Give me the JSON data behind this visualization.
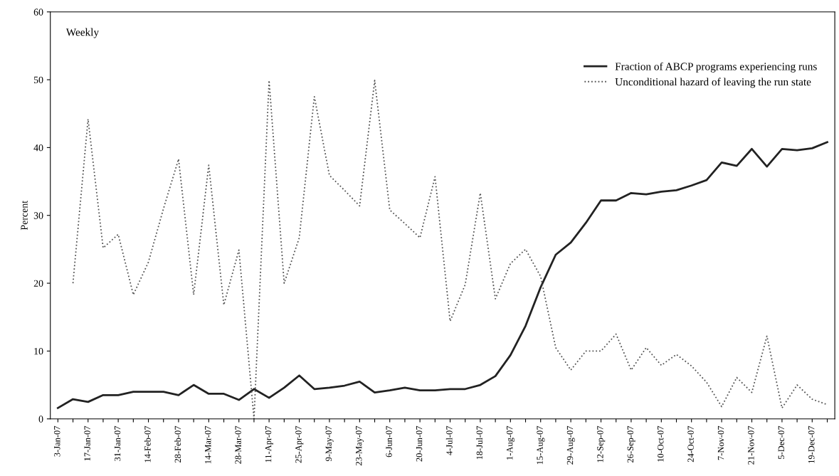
{
  "chart_data": {
    "type": "line",
    "categories": [
      "3-Jan-07",
      null,
      "17-Jan-07",
      null,
      "31-Jan-07",
      null,
      "14-Feb-07",
      null,
      "28-Feb-07",
      null,
      "14-Mar-07",
      null,
      "28-Mar-07",
      null,
      "11-Apr-07",
      null,
      "25-Apr-07",
      null,
      "9-May-07",
      null,
      "23-May-07",
      null,
      "6-Jun-07",
      null,
      "20-Jun-07",
      null,
      "4-Jul-07",
      null,
      "18-Jul-07",
      null,
      "1-Aug-07",
      null,
      "15-Aug-07",
      null,
      "29-Aug-07",
      null,
      "12-Sep-07",
      null,
      "26-Sep-07",
      null,
      "10-Oct-07",
      null,
      "24-Oct-07",
      null,
      "7-Nov-07",
      null,
      "21-Nov-07",
      null,
      "5-Dec-07",
      null,
      "19-Dec-07",
      null
    ],
    "series": [
      {
        "name": "Fraction of ABCP programs experiencing runs",
        "color": "#222222",
        "line_style": "solid",
        "values": [
          1.6,
          2.9,
          2.5,
          3.5,
          3.5,
          4.0,
          4.0,
          4.0,
          3.5,
          5.0,
          3.7,
          3.7,
          2.8,
          4.4,
          3.1,
          4.6,
          6.4,
          4.4,
          4.6,
          4.9,
          5.5,
          3.9,
          4.2,
          4.6,
          4.2,
          4.2,
          4.4,
          4.4,
          5.0,
          6.3,
          9.4,
          13.7,
          19.4,
          24.2,
          26.0,
          28.9,
          32.2,
          32.2,
          33.3,
          33.1,
          33.5,
          33.7,
          34.4,
          35.2,
          37.8,
          37.3,
          39.8,
          37.2,
          39.8,
          39.6,
          39.9,
          40.8
        ]
      },
      {
        "name": "Unconditional hazard of leaving the run state",
        "color": "#555555",
        "line_style": "dotted",
        "values": [
          null,
          20.0,
          44.2,
          25.2,
          27.2,
          18.3,
          23.1,
          31.0,
          38.3,
          18.3,
          37.4,
          16.8,
          24.9,
          0.0,
          49.9,
          20.0,
          26.7,
          47.5,
          35.9,
          33.7,
          31.4,
          49.9,
          30.8,
          28.8,
          26.7,
          35.7,
          14.4,
          19.8,
          33.3,
          17.7,
          22.9,
          25.0,
          21.0,
          10.5,
          7.2,
          10.0,
          10.0,
          12.5,
          7.2,
          10.5,
          7.9,
          9.5,
          7.8,
          5.4,
          1.8,
          6.1,
          3.9,
          12.2,
          1.6,
          5.0,
          2.9,
          2.1
        ]
      }
    ],
    "ylabel": "Percent",
    "ylim": [
      0,
      60
    ],
    "yticks": [
      0,
      10,
      20,
      30,
      40,
      50,
      60
    ],
    "annotations": [
      "Weekly"
    ],
    "legend": "top right",
    "grid": false
  }
}
